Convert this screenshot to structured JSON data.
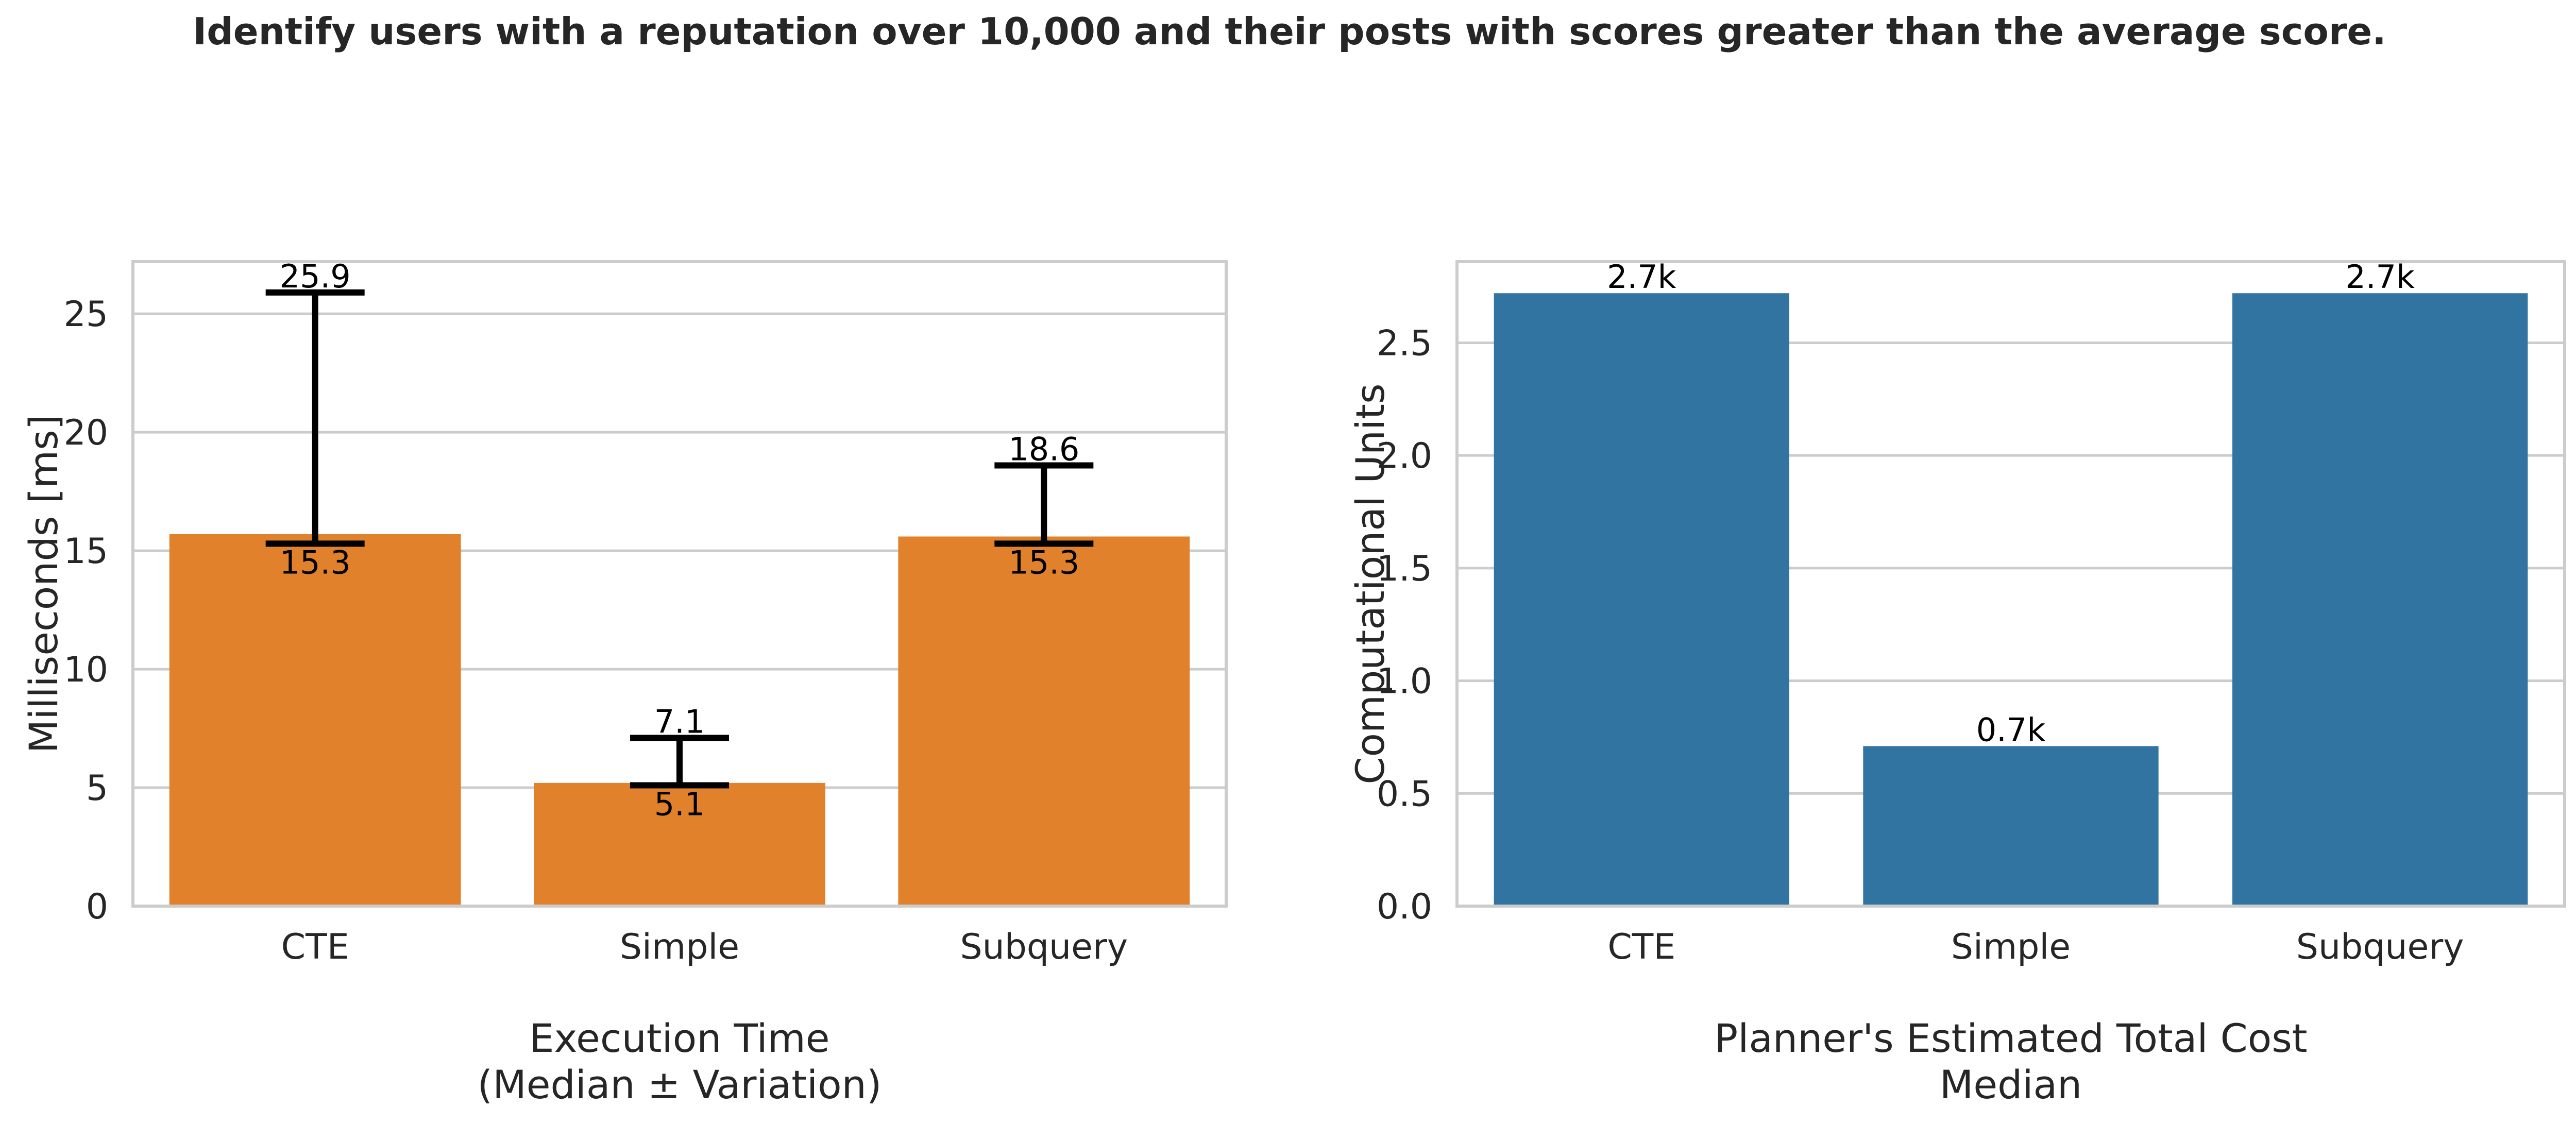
{
  "figure": {
    "suptitle": "Identify users with a reputation over 10,000 and their posts with scores greater than the average score."
  },
  "chart_data": [
    {
      "type": "bar",
      "categories": [
        "CTE",
        "Simple",
        "Subquery"
      ],
      "values": [
        15.7,
        5.2,
        15.6
      ],
      "error_low": [
        15.3,
        5.1,
        15.3
      ],
      "error_high": [
        25.9,
        7.1,
        18.6
      ],
      "error_low_labels": [
        "15.3",
        "5.1",
        "15.3"
      ],
      "error_high_labels": [
        "25.9",
        "7.1",
        "18.6"
      ],
      "ylabel": "Milliseconds [ms]",
      "xlabel_lines": [
        "Execution Time",
        "(Median ± Variation)"
      ],
      "ylim": [
        0,
        27.2
      ],
      "yticks": [
        0,
        5,
        10,
        15,
        20,
        25
      ],
      "ytick_labels": [
        "0",
        "5",
        "10",
        "15",
        "20",
        "25"
      ],
      "grid": true,
      "color": "#e1812c"
    },
    {
      "type": "bar",
      "categories": [
        "CTE",
        "Simple",
        "Subquery"
      ],
      "values": [
        2.72,
        0.71,
        2.72
      ],
      "data_labels": [
        "2.7k",
        "0.7k",
        "2.7k"
      ],
      "ylabel": "Computational Units",
      "xlabel_lines": [
        "Planner's Estimated Total Cost",
        "Median"
      ],
      "ylim": [
        0,
        2.86
      ],
      "yticks": [
        0.0,
        0.5,
        1.0,
        1.5,
        2.0,
        2.5
      ],
      "ytick_labels": [
        "0.0",
        "0.5",
        "1.0",
        "1.5",
        "2.0",
        "2.5"
      ],
      "grid": true,
      "color": "#3274a1"
    }
  ]
}
